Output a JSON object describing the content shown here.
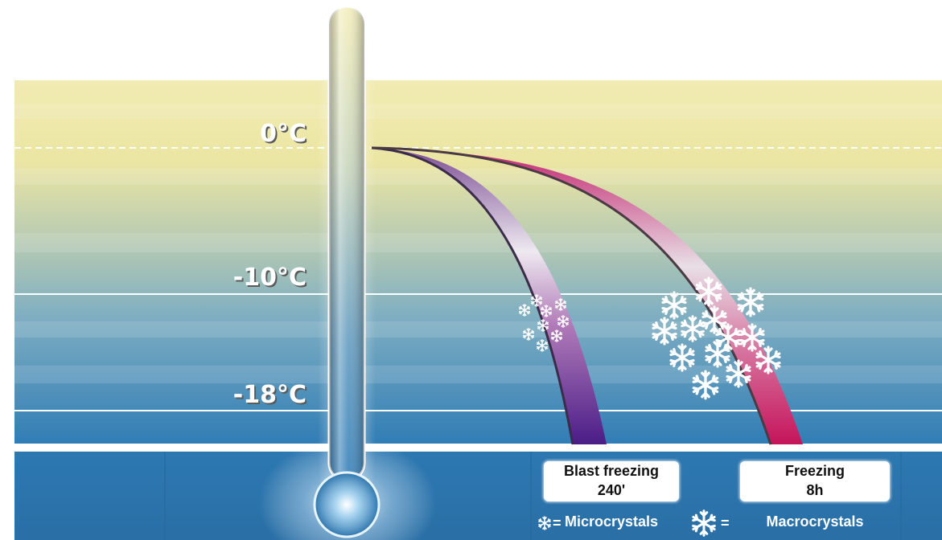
{
  "temperatures": {
    "zero": "0°C",
    "minus_ten": "-10°C",
    "minus_eighteen": "-18°C"
  },
  "legend": {
    "blast": {
      "title": "Blast freezing",
      "duration": "240'",
      "crystals": "Microcrystals"
    },
    "slow": {
      "title": "Freezing",
      "duration": "8h",
      "crystals": "Macrocrystals"
    },
    "equals": "="
  },
  "icons": {
    "small_crystal": "snowflake-icon",
    "large_crystal": "snowflake-icon"
  },
  "colors": {
    "blast_curve": "#5a2a8a",
    "slow_curve": "#c8155a",
    "sky_top": "#efeaad",
    "sky_bottom": "#2f7cb3"
  }
}
